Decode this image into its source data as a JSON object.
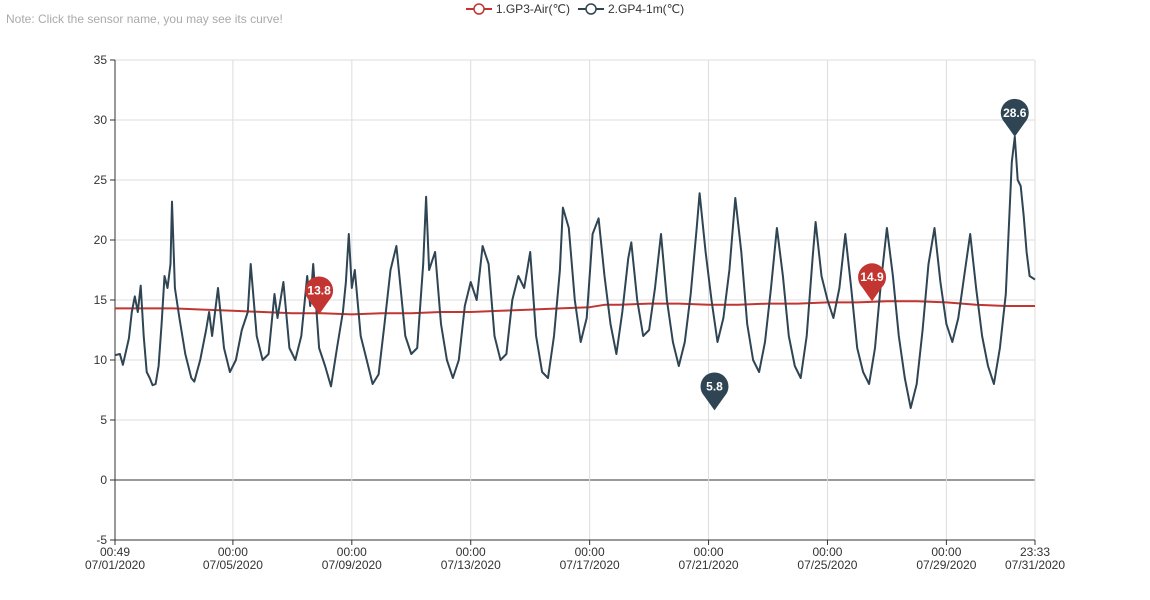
{
  "note": "Note: Click the sensor name, you may see its curve!",
  "legend": [
    {
      "label": "1.GP3-Air(℃)",
      "color": "#c23531"
    },
    {
      "label": "2.GP4-1m(℃)",
      "color": "#2f4554"
    }
  ],
  "chart_data": {
    "type": "line",
    "ylim": [
      -5,
      35
    ],
    "yticks": [
      -5,
      0,
      5,
      10,
      15,
      20,
      25,
      30,
      35
    ],
    "x_start": "07/01/2020 00:49",
    "x_end": "07/31/2020 23:33",
    "xticks": [
      {
        "time": "00:49",
        "date": "07/01/2020",
        "day": 0.034
      },
      {
        "time": "00:00",
        "date": "07/05/2020",
        "day": 4
      },
      {
        "time": "00:00",
        "date": "07/09/2020",
        "day": 8
      },
      {
        "time": "00:00",
        "date": "07/13/2020",
        "day": 12
      },
      {
        "time": "00:00",
        "date": "07/17/2020",
        "day": 16
      },
      {
        "time": "00:00",
        "date": "07/21/2020",
        "day": 20
      },
      {
        "time": "00:00",
        "date": "07/25/2020",
        "day": 24
      },
      {
        "time": "00:00",
        "date": "07/29/2020",
        "day": 28
      },
      {
        "time": "23:33",
        "date": "07/31/2020",
        "day": 30.981
      }
    ],
    "series": [
      {
        "name": "1.GP3-Air(℃)",
        "color": "#c23531",
        "points": [
          [
            0.03,
            14.3
          ],
          [
            1,
            14.3
          ],
          [
            2,
            14.3
          ],
          [
            3,
            14.2
          ],
          [
            4,
            14.1
          ],
          [
            5,
            14.0
          ],
          [
            6,
            13.9
          ],
          [
            7,
            13.9
          ],
          [
            8,
            13.8
          ],
          [
            9,
            13.9
          ],
          [
            10,
            13.9
          ],
          [
            11,
            14.0
          ],
          [
            12,
            14.0
          ],
          [
            13,
            14.1
          ],
          [
            14,
            14.2
          ],
          [
            15,
            14.3
          ],
          [
            16,
            14.4
          ],
          [
            16.5,
            14.6
          ],
          [
            17,
            14.6
          ],
          [
            18,
            14.7
          ],
          [
            19,
            14.7
          ],
          [
            20,
            14.6
          ],
          [
            21,
            14.6
          ],
          [
            22,
            14.7
          ],
          [
            23,
            14.7
          ],
          [
            24,
            14.8
          ],
          [
            25,
            14.8
          ],
          [
            26,
            14.9
          ],
          [
            27,
            14.9
          ],
          [
            28,
            14.8
          ],
          [
            29,
            14.6
          ],
          [
            30,
            14.5
          ],
          [
            30.98,
            14.5
          ]
        ],
        "markers": [
          {
            "label": "13.8",
            "x": 6.9,
            "y": 13.8
          },
          {
            "label": "14.9",
            "x": 25.5,
            "y": 14.9
          }
        ]
      },
      {
        "name": "2.GP4-1m(℃)",
        "color": "#2f4554",
        "points": [
          [
            0.03,
            10.4
          ],
          [
            0.2,
            10.5
          ],
          [
            0.3,
            9.6
          ],
          [
            0.5,
            11.8
          ],
          [
            0.6,
            14.0
          ],
          [
            0.7,
            15.3
          ],
          [
            0.8,
            14.0
          ],
          [
            0.9,
            16.2
          ],
          [
            1.0,
            12.0
          ],
          [
            1.1,
            9.0
          ],
          [
            1.2,
            8.5
          ],
          [
            1.3,
            7.9
          ],
          [
            1.4,
            8.0
          ],
          [
            1.5,
            9.5
          ],
          [
            1.6,
            13.0
          ],
          [
            1.7,
            17.0
          ],
          [
            1.8,
            16.0
          ],
          [
            1.9,
            18.0
          ],
          [
            1.95,
            23.2
          ],
          [
            2.05,
            16.0
          ],
          [
            2.2,
            13.5
          ],
          [
            2.4,
            10.5
          ],
          [
            2.6,
            8.5
          ],
          [
            2.7,
            8.2
          ],
          [
            2.9,
            10.0
          ],
          [
            3.1,
            12.5
          ],
          [
            3.2,
            14.0
          ],
          [
            3.3,
            12.0
          ],
          [
            3.5,
            16.0
          ],
          [
            3.7,
            11.0
          ],
          [
            3.9,
            9.0
          ],
          [
            4.1,
            10.0
          ],
          [
            4.3,
            12.5
          ],
          [
            4.5,
            14.0
          ],
          [
            4.6,
            18.0
          ],
          [
            4.8,
            12.0
          ],
          [
            5.0,
            10.0
          ],
          [
            5.2,
            10.5
          ],
          [
            5.4,
            15.5
          ],
          [
            5.5,
            13.5
          ],
          [
            5.6,
            15.0
          ],
          [
            5.7,
            16.5
          ],
          [
            5.9,
            11.0
          ],
          [
            6.1,
            10.0
          ],
          [
            6.3,
            12.0
          ],
          [
            6.5,
            17.0
          ],
          [
            6.6,
            14.5
          ],
          [
            6.7,
            18.0
          ],
          [
            6.9,
            11.0
          ],
          [
            7.1,
            9.5
          ],
          [
            7.3,
            7.8
          ],
          [
            7.5,
            11.0
          ],
          [
            7.7,
            14.0
          ],
          [
            7.8,
            16.5
          ],
          [
            7.9,
            20.5
          ],
          [
            8.0,
            16.0
          ],
          [
            8.1,
            17.5
          ],
          [
            8.3,
            12.0
          ],
          [
            8.5,
            10.0
          ],
          [
            8.7,
            8.0
          ],
          [
            8.9,
            8.8
          ],
          [
            9.1,
            13.0
          ],
          [
            9.3,
            17.5
          ],
          [
            9.5,
            19.5
          ],
          [
            9.6,
            17.0
          ],
          [
            9.8,
            12.0
          ],
          [
            10.0,
            10.5
          ],
          [
            10.2,
            11.0
          ],
          [
            10.4,
            18.0
          ],
          [
            10.5,
            23.6
          ],
          [
            10.6,
            17.5
          ],
          [
            10.8,
            19.0
          ],
          [
            11.0,
            13.0
          ],
          [
            11.2,
            10.0
          ],
          [
            11.4,
            8.5
          ],
          [
            11.6,
            10.0
          ],
          [
            11.8,
            14.5
          ],
          [
            12.0,
            16.5
          ],
          [
            12.2,
            15.0
          ],
          [
            12.4,
            19.5
          ],
          [
            12.6,
            18.0
          ],
          [
            12.8,
            12.0
          ],
          [
            13.0,
            10.0
          ],
          [
            13.2,
            10.5
          ],
          [
            13.4,
            15.0
          ],
          [
            13.6,
            17.0
          ],
          [
            13.8,
            16.0
          ],
          [
            14.0,
            19.0
          ],
          [
            14.2,
            12.0
          ],
          [
            14.4,
            9.0
          ],
          [
            14.6,
            8.5
          ],
          [
            14.8,
            12.0
          ],
          [
            15.0,
            17.5
          ],
          [
            15.1,
            22.7
          ],
          [
            15.3,
            21.0
          ],
          [
            15.5,
            15.0
          ],
          [
            15.7,
            11.5
          ],
          [
            15.9,
            13.5
          ],
          [
            16.1,
            20.5
          ],
          [
            16.3,
            21.8
          ],
          [
            16.5,
            17.0
          ],
          [
            16.7,
            13.0
          ],
          [
            16.9,
            10.5
          ],
          [
            17.1,
            14.0
          ],
          [
            17.3,
            18.5
          ],
          [
            17.4,
            19.8
          ],
          [
            17.6,
            15.0
          ],
          [
            17.8,
            12.0
          ],
          [
            18.0,
            12.5
          ],
          [
            18.2,
            16.0
          ],
          [
            18.4,
            20.5
          ],
          [
            18.6,
            15.0
          ],
          [
            18.8,
            11.5
          ],
          [
            19.0,
            9.5
          ],
          [
            19.2,
            11.5
          ],
          [
            19.4,
            15.5
          ],
          [
            19.6,
            21.0
          ],
          [
            19.7,
            23.9
          ],
          [
            19.9,
            19.0
          ],
          [
            20.1,
            15.0
          ],
          [
            20.3,
            11.5
          ],
          [
            20.5,
            13.5
          ],
          [
            20.7,
            17.5
          ],
          [
            20.9,
            23.5
          ],
          [
            21.1,
            19.0
          ],
          [
            21.3,
            13.0
          ],
          [
            21.5,
            10.0
          ],
          [
            21.7,
            9.0
          ],
          [
            21.9,
            11.5
          ],
          [
            22.1,
            16.0
          ],
          [
            22.3,
            21.0
          ],
          [
            22.5,
            17.0
          ],
          [
            22.7,
            12.0
          ],
          [
            22.9,
            9.5
          ],
          [
            23.1,
            8.5
          ],
          [
            23.3,
            12.0
          ],
          [
            23.5,
            18.5
          ],
          [
            23.6,
            21.5
          ],
          [
            23.8,
            17.0
          ],
          [
            24.0,
            15.0
          ],
          [
            24.2,
            13.5
          ],
          [
            24.4,
            16.0
          ],
          [
            24.6,
            20.5
          ],
          [
            24.8,
            16.0
          ],
          [
            25.0,
            11.0
          ],
          [
            25.2,
            9.0
          ],
          [
            25.4,
            8.0
          ],
          [
            25.6,
            11.0
          ],
          [
            25.8,
            16.5
          ],
          [
            26.0,
            21.0
          ],
          [
            26.2,
            17.0
          ],
          [
            26.4,
            12.0
          ],
          [
            26.6,
            8.5
          ],
          [
            26.8,
            6.0
          ],
          [
            27.0,
            8.0
          ],
          [
            27.2,
            12.5
          ],
          [
            27.4,
            18.0
          ],
          [
            27.6,
            21.0
          ],
          [
            27.8,
            16.5
          ],
          [
            28.0,
            13.0
          ],
          [
            28.2,
            11.5
          ],
          [
            28.4,
            13.5
          ],
          [
            28.6,
            17.0
          ],
          [
            28.8,
            20.5
          ],
          [
            29.0,
            16.0
          ],
          [
            29.2,
            12.0
          ],
          [
            29.4,
            9.5
          ],
          [
            29.6,
            8.0
          ],
          [
            29.8,
            11.0
          ],
          [
            30.0,
            15.5
          ],
          [
            30.1,
            21.0
          ],
          [
            30.2,
            26.5
          ],
          [
            30.3,
            28.6
          ],
          [
            30.4,
            25.0
          ],
          [
            30.5,
            24.5
          ],
          [
            30.6,
            22.0
          ],
          [
            30.7,
            19.0
          ],
          [
            30.8,
            17.0
          ],
          [
            30.98,
            16.7
          ]
        ],
        "markers": [
          {
            "label": "5.8",
            "x": 20.2,
            "y": 5.8
          },
          {
            "label": "28.6",
            "x": 30.3,
            "y": 28.6
          }
        ]
      }
    ]
  }
}
